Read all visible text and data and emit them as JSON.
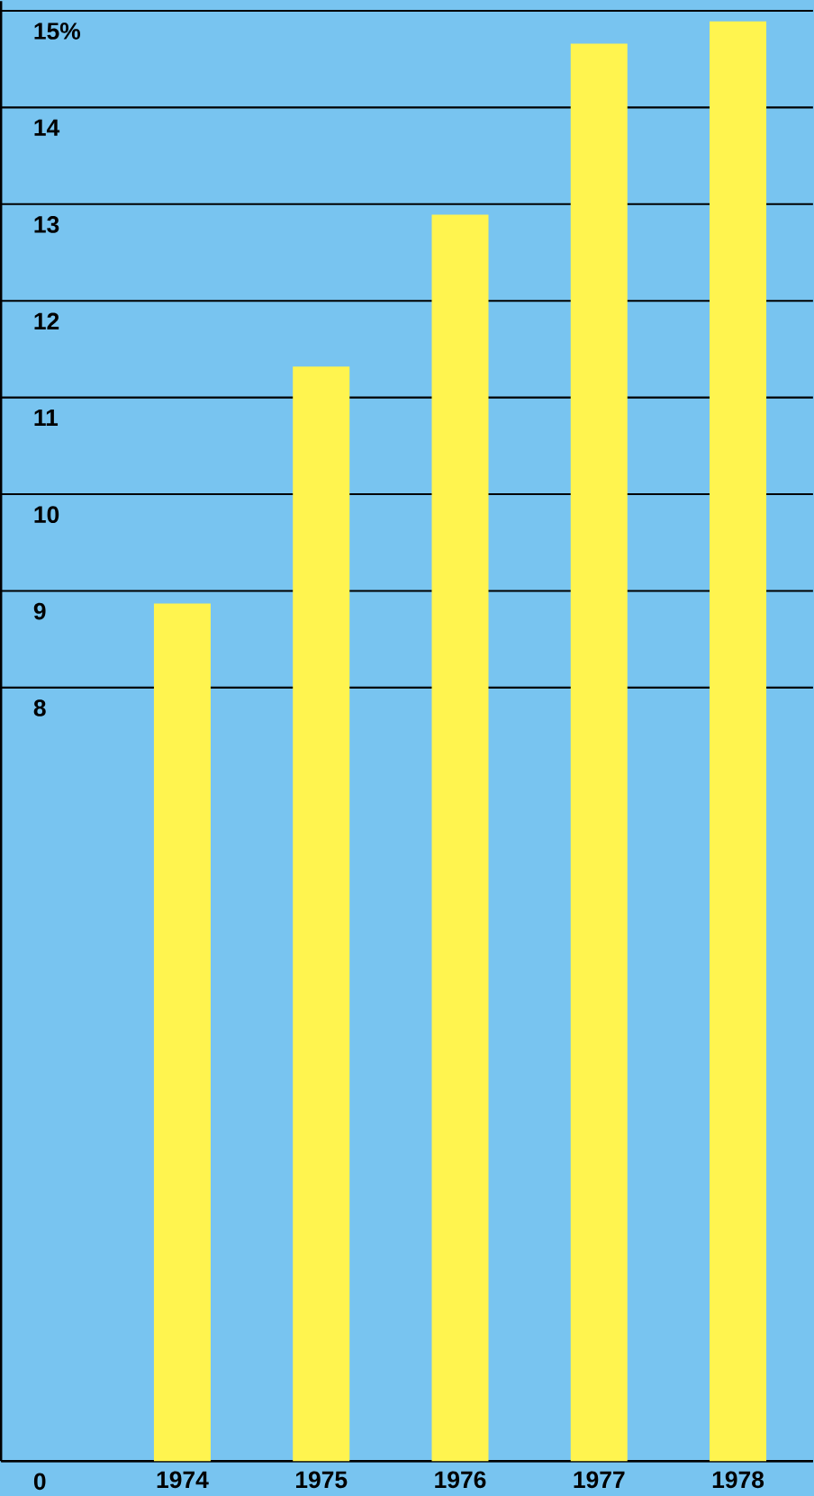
{
  "chart_data": {
    "type": "bar",
    "categories": [
      "1974",
      "1975",
      "1976",
      "1977",
      "1978"
    ],
    "values": [
      8.87,
      11.32,
      12.89,
      14.66,
      14.89
    ],
    "color": "#fff44f",
    "ylim": [
      0,
      15.1
    ],
    "yticks": [
      0,
      8,
      9,
      10,
      11,
      12,
      13,
      14,
      {
        "value": 15,
        "label": "15%"
      }
    ],
    "grid": "y"
  }
}
